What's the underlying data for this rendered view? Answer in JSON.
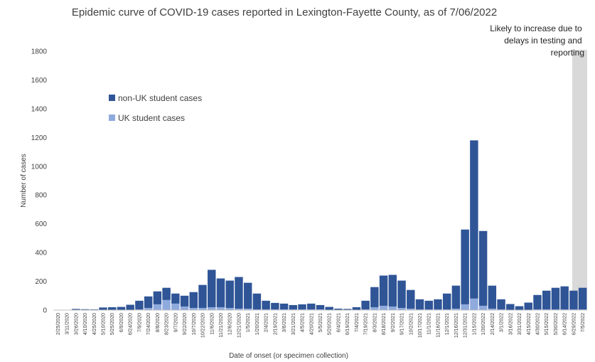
{
  "chart_data": {
    "type": "bar",
    "title": "Epidemic curve of COVID-19 cases reported in Lexington-Fayette County, as of 7/06/2022",
    "xlabel": "Date of onset (or specimen collection)",
    "ylabel": "Number of cases",
    "ylim": [
      0,
      1800
    ],
    "yticks": [
      0,
      200,
      400,
      600,
      800,
      1000,
      1200,
      1400,
      1600,
      1800
    ],
    "stacked": true,
    "legend_position": "upper-left",
    "grid": false,
    "shaded_region_note": "Likely to increase due to delays in testing and reporting",
    "categories": [
      "2/25/2020",
      "3/11/2020",
      "3/26/2020",
      "4/10/2020",
      "4/25/2020",
      "5/10/2020",
      "5/25/2020",
      "6/9/2020",
      "6/24/2020",
      "7/9/2020",
      "7/24/2020",
      "8/8/2020",
      "8/23/2020",
      "9/7/2020",
      "9/22/2020",
      "10/7/2020",
      "10/22/2020",
      "11/6/2020",
      "11/21/2020",
      "12/6/2020",
      "12/21/2020",
      "1/5/2021",
      "1/20/2021",
      "2/4/2021",
      "2/19/2021",
      "3/6/2021",
      "3/21/2021",
      "4/5/2021",
      "4/20/2021",
      "5/5/2021",
      "5/20/2021",
      "6/4/2021",
      "6/19/2021",
      "7/4/2021",
      "7/19/2021",
      "8/3/2021",
      "8/18/2021",
      "9/2/2021",
      "9/17/2021",
      "10/2/2021",
      "10/17/2021",
      "11/1/2021",
      "11/16/2021",
      "12/1/2021",
      "12/16/2021",
      "12/31/2021",
      "1/15/2022",
      "1/30/2022",
      "2/14/2022",
      "3/1/2022",
      "3/16/2022",
      "3/31/2022",
      "4/15/2022",
      "4/30/2022",
      "5/15/2022",
      "5/30/2022",
      "6/14/2022",
      "6/29/2022",
      "7/5/2022"
    ],
    "series": [
      {
        "name": "non-UK student cases",
        "color": "#2f5597",
        "values": [
          0,
          2,
          8,
          6,
          5,
          18,
          20,
          22,
          35,
          60,
          80,
          90,
          85,
          70,
          75,
          110,
          160,
          260,
          200,
          190,
          220,
          180,
          110,
          60,
          45,
          40,
          30,
          35,
          40,
          30,
          20,
          10,
          8,
          20,
          60,
          140,
          210,
          220,
          190,
          130,
          70,
          60,
          70,
          110,
          160,
          520,
          1100,
          520,
          160,
          70,
          40,
          25,
          50,
          100,
          130,
          150,
          160,
          130,
          150
        ]
      },
      {
        "name": "UK student cases",
        "color": "#8faadc",
        "values": [
          0,
          0,
          0,
          0,
          0,
          0,
          0,
          0,
          2,
          5,
          15,
          40,
          70,
          45,
          25,
          15,
          15,
          20,
          20,
          15,
          10,
          10,
          5,
          5,
          5,
          5,
          5,
          5,
          5,
          5,
          2,
          0,
          0,
          0,
          5,
          20,
          30,
          25,
          15,
          10,
          5,
          5,
          5,
          5,
          10,
          40,
          80,
          30,
          10,
          5,
          2,
          2,
          2,
          5,
          5,
          5,
          5,
          5,
          5
        ]
      }
    ]
  }
}
